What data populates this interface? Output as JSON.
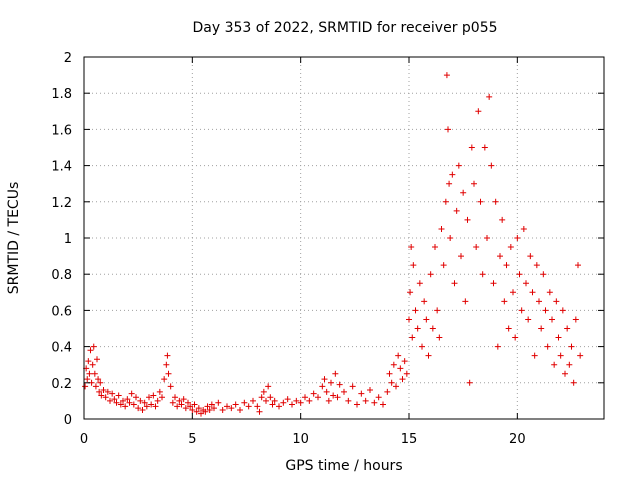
{
  "chart_data": {
    "type": "scatter",
    "title": "Day 353 of 2022, SRMTID for receiver p055",
    "xlabel": "GPS time / hours",
    "ylabel": "SRMTID / TECUs",
    "xlim": [
      0,
      24
    ],
    "ylim": [
      0,
      2
    ],
    "x_ticks": [
      "0",
      "5",
      "10",
      "15",
      "20"
    ],
    "y_ticks": [
      "0",
      "0.2",
      "0.4",
      "0.6",
      "0.8",
      "1",
      "1.2",
      "1.4",
      "1.6",
      "1.8",
      "2"
    ],
    "grid": true,
    "marker": "+",
    "color": "#e00000",
    "series": [
      {
        "name": "p055",
        "points": [
          [
            0.05,
            0.18
          ],
          [
            0.1,
            0.28
          ],
          [
            0.15,
            0.22
          ],
          [
            0.2,
            0.32
          ],
          [
            0.25,
            0.25
          ],
          [
            0.3,
            0.38
          ],
          [
            0.35,
            0.2
          ],
          [
            0.4,
            0.3
          ],
          [
            0.45,
            0.4
          ],
          [
            0.5,
            0.25
          ],
          [
            0.55,
            0.18
          ],
          [
            0.6,
            0.33
          ],
          [
            0.65,
            0.22
          ],
          [
            0.7,
            0.15
          ],
          [
            0.75,
            0.2
          ],
          [
            0.8,
            0.13
          ],
          [
            0.9,
            0.16
          ],
          [
            1.0,
            0.12
          ],
          [
            1.1,
            0.15
          ],
          [
            1.2,
            0.1
          ],
          [
            1.3,
            0.14
          ],
          [
            1.4,
            0.11
          ],
          [
            1.5,
            0.09
          ],
          [
            1.6,
            0.13
          ],
          [
            1.7,
            0.08
          ],
          [
            1.8,
            0.1
          ],
          [
            1.9,
            0.07
          ],
          [
            2.0,
            0.11
          ],
          [
            2.1,
            0.09
          ],
          [
            2.2,
            0.14
          ],
          [
            2.3,
            0.08
          ],
          [
            2.4,
            0.12
          ],
          [
            2.5,
            0.06
          ],
          [
            2.6,
            0.1
          ],
          [
            2.7,
            0.05
          ],
          [
            2.8,
            0.09
          ],
          [
            2.9,
            0.07
          ],
          [
            3.0,
            0.12
          ],
          [
            3.1,
            0.08
          ],
          [
            3.2,
            0.13
          ],
          [
            3.3,
            0.07
          ],
          [
            3.4,
            0.1
          ],
          [
            3.5,
            0.15
          ],
          [
            3.6,
            0.12
          ],
          [
            3.7,
            0.22
          ],
          [
            3.8,
            0.3
          ],
          [
            3.85,
            0.35
          ],
          [
            3.9,
            0.25
          ],
          [
            4.0,
            0.18
          ],
          [
            4.1,
            0.09
          ],
          [
            4.2,
            0.12
          ],
          [
            4.3,
            0.07
          ],
          [
            4.4,
            0.1
          ],
          [
            4.5,
            0.08
          ],
          [
            4.6,
            0.11
          ],
          [
            4.7,
            0.06
          ],
          [
            4.8,
            0.09
          ],
          [
            4.9,
            0.07
          ],
          [
            5.0,
            0.05
          ],
          [
            5.1,
            0.08
          ],
          [
            5.2,
            0.04
          ],
          [
            5.3,
            0.06
          ],
          [
            5.4,
            0.03
          ],
          [
            5.5,
            0.05
          ],
          [
            5.6,
            0.04
          ],
          [
            5.7,
            0.07
          ],
          [
            5.8,
            0.05
          ],
          [
            5.9,
            0.08
          ],
          [
            6.0,
            0.06
          ],
          [
            6.2,
            0.09
          ],
          [
            6.4,
            0.05
          ],
          [
            6.6,
            0.07
          ],
          [
            6.8,
            0.06
          ],
          [
            7.0,
            0.08
          ],
          [
            7.2,
            0.05
          ],
          [
            7.4,
            0.09
          ],
          [
            7.6,
            0.07
          ],
          [
            7.8,
            0.1
          ],
          [
            8.0,
            0.07
          ],
          [
            8.1,
            0.04
          ],
          [
            8.2,
            0.12
          ],
          [
            8.3,
            0.15
          ],
          [
            8.4,
            0.1
          ],
          [
            8.5,
            0.18
          ],
          [
            8.6,
            0.12
          ],
          [
            8.7,
            0.08
          ],
          [
            8.8,
            0.1
          ],
          [
            9.0,
            0.07
          ],
          [
            9.2,
            0.09
          ],
          [
            9.4,
            0.11
          ],
          [
            9.6,
            0.08
          ],
          [
            9.8,
            0.1
          ],
          [
            10.0,
            0.09
          ],
          [
            10.2,
            0.12
          ],
          [
            10.4,
            0.1
          ],
          [
            10.6,
            0.14
          ],
          [
            10.8,
            0.12
          ],
          [
            11.0,
            0.18
          ],
          [
            11.1,
            0.22
          ],
          [
            11.2,
            0.15
          ],
          [
            11.3,
            0.1
          ],
          [
            11.4,
            0.2
          ],
          [
            11.5,
            0.13
          ],
          [
            11.6,
            0.25
          ],
          [
            11.7,
            0.12
          ],
          [
            11.8,
            0.19
          ],
          [
            12.0,
            0.15
          ],
          [
            12.2,
            0.1
          ],
          [
            12.4,
            0.18
          ],
          [
            12.6,
            0.08
          ],
          [
            12.8,
            0.14
          ],
          [
            13.0,
            0.1
          ],
          [
            13.2,
            0.16
          ],
          [
            13.4,
            0.09
          ],
          [
            13.6,
            0.12
          ],
          [
            13.8,
            0.08
          ],
          [
            14.0,
            0.15
          ],
          [
            14.1,
            0.25
          ],
          [
            14.2,
            0.2
          ],
          [
            14.3,
            0.3
          ],
          [
            14.4,
            0.18
          ],
          [
            14.5,
            0.35
          ],
          [
            14.6,
            0.28
          ],
          [
            14.7,
            0.22
          ],
          [
            14.8,
            0.32
          ],
          [
            14.9,
            0.25
          ],
          [
            15.0,
            0.55
          ],
          [
            15.05,
            0.7
          ],
          [
            15.1,
            0.95
          ],
          [
            15.15,
            0.45
          ],
          [
            15.2,
            0.85
          ],
          [
            15.3,
            0.6
          ],
          [
            15.4,
            0.5
          ],
          [
            15.5,
            0.75
          ],
          [
            15.6,
            0.4
          ],
          [
            15.7,
            0.65
          ],
          [
            15.8,
            0.55
          ],
          [
            15.9,
            0.35
          ],
          [
            16.0,
            0.8
          ],
          [
            16.1,
            0.5
          ],
          [
            16.2,
            0.95
          ],
          [
            16.3,
            0.6
          ],
          [
            16.4,
            0.45
          ],
          [
            16.5,
            1.05
          ],
          [
            16.6,
            0.85
          ],
          [
            16.7,
            1.2
          ],
          [
            16.75,
            1.9
          ],
          [
            16.8,
            1.6
          ],
          [
            16.85,
            1.3
          ],
          [
            16.9,
            1.0
          ],
          [
            17.0,
            1.35
          ],
          [
            17.1,
            0.75
          ],
          [
            17.2,
            1.15
          ],
          [
            17.3,
            1.4
          ],
          [
            17.4,
            0.9
          ],
          [
            17.5,
            1.25
          ],
          [
            17.6,
            0.65
          ],
          [
            17.7,
            1.1
          ],
          [
            17.8,
            0.2
          ],
          [
            17.9,
            1.5
          ],
          [
            18.0,
            1.3
          ],
          [
            18.1,
            0.95
          ],
          [
            18.2,
            1.7
          ],
          [
            18.3,
            1.2
          ],
          [
            18.4,
            0.8
          ],
          [
            18.5,
            1.5
          ],
          [
            18.6,
            1.0
          ],
          [
            18.7,
            1.78
          ],
          [
            18.8,
            1.4
          ],
          [
            18.9,
            0.75
          ],
          [
            19.0,
            1.2
          ],
          [
            19.1,
            0.4
          ],
          [
            19.2,
            0.9
          ],
          [
            19.3,
            1.1
          ],
          [
            19.4,
            0.65
          ],
          [
            19.5,
            0.85
          ],
          [
            19.6,
            0.5
          ],
          [
            19.7,
            0.95
          ],
          [
            19.8,
            0.7
          ],
          [
            19.9,
            0.45
          ],
          [
            20.0,
            1.0
          ],
          [
            20.1,
            0.8
          ],
          [
            20.2,
            0.6
          ],
          [
            20.3,
            1.05
          ],
          [
            20.4,
            0.75
          ],
          [
            20.5,
            0.55
          ],
          [
            20.6,
            0.9
          ],
          [
            20.7,
            0.7
          ],
          [
            20.8,
            0.35
          ],
          [
            20.9,
            0.85
          ],
          [
            21.0,
            0.65
          ],
          [
            21.1,
            0.5
          ],
          [
            21.2,
            0.8
          ],
          [
            21.3,
            0.6
          ],
          [
            21.4,
            0.4
          ],
          [
            21.5,
            0.7
          ],
          [
            21.6,
            0.55
          ],
          [
            21.7,
            0.3
          ],
          [
            21.8,
            0.65
          ],
          [
            21.9,
            0.45
          ],
          [
            22.0,
            0.35
          ],
          [
            22.1,
            0.6
          ],
          [
            22.2,
            0.25
          ],
          [
            22.3,
            0.5
          ],
          [
            22.4,
            0.3
          ],
          [
            22.5,
            0.4
          ],
          [
            22.6,
            0.2
          ],
          [
            22.7,
            0.55
          ],
          [
            22.8,
            0.85
          ],
          [
            22.9,
            0.35
          ]
        ]
      }
    ]
  }
}
